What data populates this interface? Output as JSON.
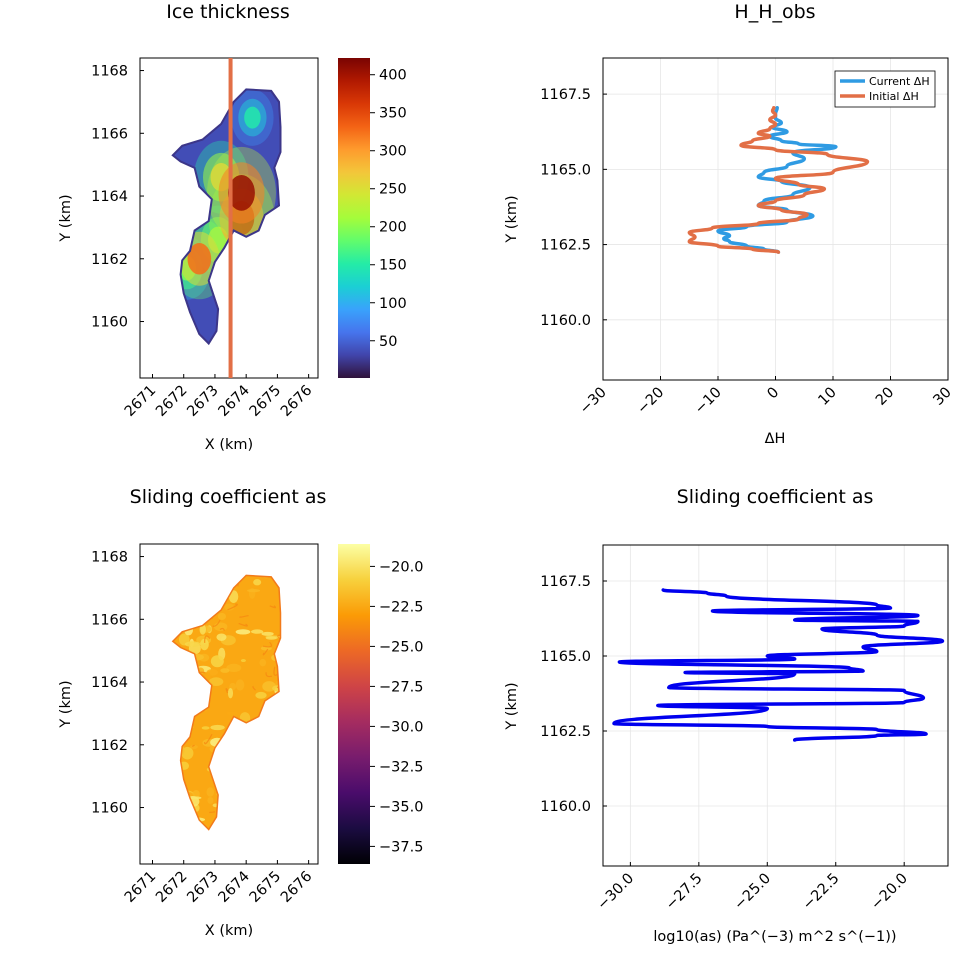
{
  "chart_data": [
    {
      "type": "heatmap",
      "title": "Ice thickness",
      "xlabel": "X (km)",
      "ylabel": "Y (km)",
      "x_ticks": [
        2671,
        2672,
        2673,
        2674,
        2675,
        2676
      ],
      "y_ticks": [
        1160,
        1162,
        1164,
        1166,
        1168
      ],
      "xlim": [
        2670.6,
        2676.3
      ],
      "ylim": [
        1158.2,
        1168.4
      ],
      "colormap": "turbo",
      "colorbar_range": [
        1,
        422
      ],
      "colorbar_ticks": [
        50,
        100,
        150,
        200,
        250,
        300,
        350,
        400
      ],
      "profile_line_x": 2673.5,
      "profile_line_color": "#e26f46",
      "outline": [
        [
          2672.8,
          1159.3
        ],
        [
          2672.5,
          1159.6
        ],
        [
          2672.2,
          1160.3
        ],
        [
          2672.0,
          1160.9
        ],
        [
          2671.9,
          1161.5
        ],
        [
          2671.95,
          1161.95
        ],
        [
          2672.2,
          1162.25
        ],
        [
          2672.35,
          1162.9
        ],
        [
          2672.8,
          1163.2
        ],
        [
          2672.9,
          1163.9
        ],
        [
          2672.5,
          1164.3
        ],
        [
          2672.35,
          1164.9
        ],
        [
          2671.9,
          1165.1
        ],
        [
          2671.65,
          1165.3
        ],
        [
          2671.95,
          1165.6
        ],
        [
          2672.6,
          1165.8
        ],
        [
          2673.2,
          1166.3
        ],
        [
          2673.6,
          1167.0
        ],
        [
          2674.0,
          1167.4
        ],
        [
          2674.8,
          1167.35
        ],
        [
          2675.05,
          1167.0
        ],
        [
          2675.1,
          1166.2
        ],
        [
          2675.1,
          1165.4
        ],
        [
          2674.9,
          1164.9
        ],
        [
          2675.0,
          1164.5
        ],
        [
          2675.05,
          1163.7
        ],
        [
          2674.6,
          1163.4
        ],
        [
          2674.4,
          1162.9
        ],
        [
          2674.0,
          1162.7
        ],
        [
          2673.6,
          1162.9
        ],
        [
          2673.3,
          1162.35
        ],
        [
          2673.0,
          1161.9
        ],
        [
          2672.8,
          1161.3
        ],
        [
          2673.1,
          1160.4
        ],
        [
          2673.05,
          1159.7
        ]
      ],
      "hotspots": [
        {
          "x": 2673.85,
          "y": 1164.1,
          "value": 410
        },
        {
          "x": 2673.85,
          "y": 1163.3,
          "value": 380
        },
        {
          "x": 2672.5,
          "y": 1162.0,
          "value": 330
        },
        {
          "x": 2673.2,
          "y": 1164.6,
          "value": 270
        },
        {
          "x": 2673.1,
          "y": 1162.6,
          "value": 240
        },
        {
          "x": 2674.2,
          "y": 1166.5,
          "value": 150
        },
        {
          "x": 2672.1,
          "y": 1161.7,
          "value": 200
        }
      ]
    },
    {
      "type": "line",
      "title": "H_H_obs",
      "xlabel": "ΔH",
      "ylabel": "Y (km)",
      "x_ticks": [
        -30,
        -20,
        -10,
        0,
        10,
        20,
        30
      ],
      "y_ticks": [
        1160.0,
        1162.5,
        1165.0,
        1167.5
      ],
      "xlim": [
        -30,
        30
      ],
      "ylim": [
        1158.0,
        1168.7
      ],
      "grid": true,
      "legend_position": "top-right",
      "series": [
        {
          "name": "Current ΔH",
          "color": "#2f9be3",
          "points": [
            [
              0.5,
              1162.25
            ],
            [
              -2,
              1162.35
            ],
            [
              -5,
              1162.45
            ],
            [
              -8,
              1162.6
            ],
            [
              -9,
              1162.7
            ],
            [
              -8,
              1162.8
            ],
            [
              -10,
              1162.95
            ],
            [
              -5,
              1163.1
            ],
            [
              2,
              1163.25
            ],
            [
              6.5,
              1163.45
            ],
            [
              2,
              1163.65
            ],
            [
              -3,
              1163.8
            ],
            [
              -2,
              1163.95
            ],
            [
              3,
              1164.15
            ],
            [
              6,
              1164.4
            ],
            [
              1,
              1164.6
            ],
            [
              -3,
              1164.75
            ],
            [
              -2,
              1164.9
            ],
            [
              2,
              1165.1
            ],
            [
              5,
              1165.35
            ],
            [
              3,
              1165.55
            ],
            [
              10.5,
              1165.75
            ],
            [
              4,
              1165.85
            ],
            [
              1,
              1165.95
            ],
            [
              -1,
              1166.1
            ],
            [
              2,
              1166.25
            ],
            [
              -0.5,
              1166.4
            ],
            [
              1,
              1166.55
            ],
            [
              0,
              1166.7
            ],
            [
              0,
              1166.85
            ],
            [
              0.3,
              1167.05
            ]
          ]
        },
        {
          "name": "Initial ΔH",
          "color": "#e26f46",
          "points": [
            [
              0.5,
              1162.25
            ],
            [
              -4,
              1162.35
            ],
            [
              -10,
              1162.45
            ],
            [
              -15,
              1162.6
            ],
            [
              -14,
              1162.75
            ],
            [
              -15,
              1162.9
            ],
            [
              -11,
              1163.05
            ],
            [
              -3,
              1163.2
            ],
            [
              4,
              1163.35
            ],
            [
              5.5,
              1163.5
            ],
            [
              1,
              1163.65
            ],
            [
              -3,
              1163.8
            ],
            [
              0,
              1163.95
            ],
            [
              5,
              1164.15
            ],
            [
              8.5,
              1164.35
            ],
            [
              4,
              1164.5
            ],
            [
              0,
              1164.7
            ],
            [
              10,
              1164.9
            ],
            [
              16,
              1165.25
            ],
            [
              9,
              1165.5
            ],
            [
              0,
              1165.65
            ],
            [
              -6,
              1165.8
            ],
            [
              -4,
              1165.95
            ],
            [
              -1,
              1166.1
            ],
            [
              -3,
              1166.2
            ],
            [
              -1,
              1166.35
            ],
            [
              0,
              1166.5
            ],
            [
              -1,
              1166.65
            ],
            [
              0,
              1166.8
            ],
            [
              -0.5,
              1166.95
            ],
            [
              -0.3,
              1167.05
            ]
          ]
        }
      ]
    },
    {
      "type": "heatmap",
      "title": "Sliding coefficient as",
      "xlabel": "X (km)",
      "ylabel": "Y (km)",
      "x_ticks": [
        2671,
        2672,
        2673,
        2674,
        2675,
        2676
      ],
      "y_ticks": [
        1160,
        1162,
        1164,
        1166,
        1168
      ],
      "xlim": [
        2670.6,
        2676.3
      ],
      "ylim": [
        1158.2,
        1168.4
      ],
      "colormap": "inferno",
      "colorbar_range": [
        -38.6,
        -18.6
      ],
      "colorbar_ticks": [
        -20.0,
        -22.5,
        -25.0,
        -27.5,
        -30.0,
        -32.5,
        -35.0,
        -37.5
      ],
      "values_typical": [
        -22.5,
        -20.0
      ]
    },
    {
      "type": "line",
      "title": "Sliding coefficient as",
      "xlabel": "log10(as) (Pa^(−3) m^2 s^(−1))",
      "ylabel": "Y (km)",
      "x_ticks": [
        -30.0,
        -27.5,
        -25.0,
        -22.5,
        -20.0
      ],
      "y_ticks": [
        1160.0,
        1162.5,
        1165.0,
        1167.5
      ],
      "xlim": [
        -31.0,
        -18.4
      ],
      "ylim": [
        1158.0,
        1168.7
      ],
      "grid": true,
      "series": [
        {
          "color": "#0000ee",
          "points": [
            [
              -24,
              1162.2
            ],
            [
              -21,
              1162.35
            ],
            [
              -19.2,
              1162.4
            ],
            [
              -21,
              1162.55
            ],
            [
              -25,
              1162.65
            ],
            [
              -30.6,
              1162.75
            ],
            [
              -25,
              1163.25
            ],
            [
              -29,
              1163.35
            ],
            [
              -20,
              1163.45
            ],
            [
              -19.3,
              1163.6
            ],
            [
              -20,
              1163.85
            ],
            [
              -28.6,
              1163.95
            ],
            [
              -24,
              1164.4
            ],
            [
              -28,
              1164.45
            ],
            [
              -21.5,
              1164.5
            ],
            [
              -22,
              1164.6
            ],
            [
              -30.4,
              1164.8
            ],
            [
              -24,
              1164.9
            ],
            [
              -25,
              1165.0
            ],
            [
              -21,
              1165.15
            ],
            [
              -21.5,
              1165.3
            ],
            [
              -18.6,
              1165.5
            ],
            [
              -21,
              1165.7
            ],
            [
              -23,
              1165.9
            ],
            [
              -20,
              1166.0
            ],
            [
              -19.5,
              1166.15
            ],
            [
              -24,
              1166.2
            ],
            [
              -19.5,
              1166.35
            ],
            [
              -27,
              1166.5
            ],
            [
              -20.5,
              1166.6
            ],
            [
              -21,
              1166.7
            ],
            [
              -26.5,
              1167.0
            ],
            [
              -27.2,
              1167.1
            ],
            [
              -28.8,
              1167.2
            ]
          ]
        }
      ]
    }
  ]
}
